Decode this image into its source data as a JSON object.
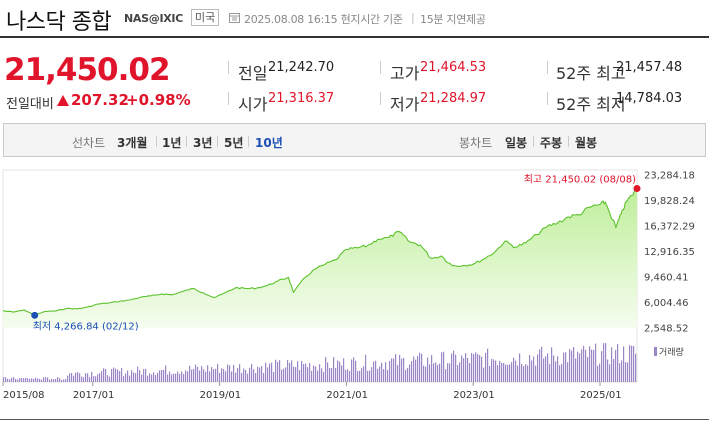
{
  "header": {
    "title": "나스닥 종합",
    "code": "NAS@IXIC",
    "country": "미국",
    "timestamp": "2025.08.08 16:15 현지시간 기준",
    "separator": "|",
    "delay_note": "15분 지연제공"
  },
  "quote": {
    "price": "21,450.02",
    "change_label": "전일대비",
    "change_value": "207.32",
    "change_pct": "+0.98%"
  },
  "stats": [
    {
      "label": "전일",
      "value": "21,242.70",
      "color": "#222222"
    },
    {
      "label": "고가",
      "value": "21,464.53",
      "color": "#e0142b"
    },
    {
      "label": "52주 최고",
      "value": "21,457.48",
      "color": "#222222"
    },
    {
      "label": "시가",
      "value": "21,316.37",
      "color": "#e0142b"
    },
    {
      "label": "저가",
      "value": "21,284.97",
      "color": "#e0142b"
    },
    {
      "label": "52주 최저",
      "value": "14,784.03",
      "color": "#222222"
    }
  ],
  "controls": {
    "line_label": "선차트",
    "line_options": [
      "3개월",
      "1년",
      "3년",
      "5년",
      "10년"
    ],
    "line_active": "10년",
    "candle_label": "봉차트",
    "candle_options": [
      "일봉",
      "주봉",
      "월봉"
    ]
  },
  "colors": {
    "accent_up": "#e0142b",
    "accent_down": "#1a4fb4",
    "line": "#5cc22d",
    "fill_top": "#bfee9a",
    "fill_bottom": "#f6fdf0",
    "volume": "#9b86c6"
  },
  "chart_data": {
    "type": "area",
    "x_ticks": [
      "2015/08",
      "2017/01",
      "2019/01",
      "2021/01",
      "2023/01",
      "2025/01"
    ],
    "y_ticks": [
      "23,284.18",
      "19,828.24",
      "16,372.29",
      "12,916.35",
      "9,460.41",
      "6,004.46",
      "2,548.52"
    ],
    "ylim": [
      2548.52,
      23284.18
    ],
    "xlim": [
      "2015/08",
      "2025/08"
    ],
    "annotations": {
      "high": "최고 21,450.02 (08/08)",
      "low": "최저 4,266.84 (02/12)"
    },
    "volume_legend": "거래량",
    "series": [
      {
        "x": [
          "2015/08",
          "2015/10",
          "2015/12",
          "2016/02",
          "2016/04",
          "2016/06",
          "2016/08",
          "2016/10",
          "2016/12",
          "2017/02",
          "2017/04",
          "2017/06",
          "2017/08",
          "2017/10",
          "2017/12",
          "2018/02",
          "2018/04",
          "2018/06",
          "2018/08",
          "2018/10",
          "2018/12",
          "2019/02",
          "2019/04",
          "2019/06",
          "2019/08",
          "2019/10",
          "2019/12",
          "2020/02",
          "2020/03",
          "2020/05",
          "2020/07",
          "2020/09",
          "2020/11",
          "2021/01",
          "2021/03",
          "2021/05",
          "2021/07",
          "2021/09",
          "2021/11",
          "2022/01",
          "2022/03",
          "2022/05",
          "2022/07",
          "2022/09",
          "2022/11",
          "2023/01",
          "2023/03",
          "2023/05",
          "2023/07",
          "2023/09",
          "2023/11",
          "2024/01",
          "2024/03",
          "2024/05",
          "2024/07",
          "2024/09",
          "2024/11",
          "2025/01",
          "2025/02",
          "2025/04",
          "2025/05",
          "2025/06",
          "2025/07",
          "2025/08"
        ],
        "y": [
          4880,
          4700,
          5000,
          4266.84,
          4800,
          4850,
          5200,
          5150,
          5380,
          5800,
          5950,
          6150,
          6350,
          6700,
          6900,
          7150,
          7050,
          7500,
          7900,
          7300,
          6650,
          7300,
          8000,
          7900,
          7950,
          8300,
          8900,
          9400,
          7400,
          9300,
          10500,
          11200,
          11800,
          13200,
          13400,
          13700,
          14600,
          14800,
          15600,
          14200,
          13800,
          12000,
          12300,
          11000,
          11000,
          11200,
          11900,
          12800,
          14300,
          13500,
          14100,
          15200,
          16300,
          16800,
          17600,
          17900,
          18900,
          19300,
          19600,
          16200,
          18000,
          19700,
          20500,
          21450.02
        ]
      }
    ]
  }
}
